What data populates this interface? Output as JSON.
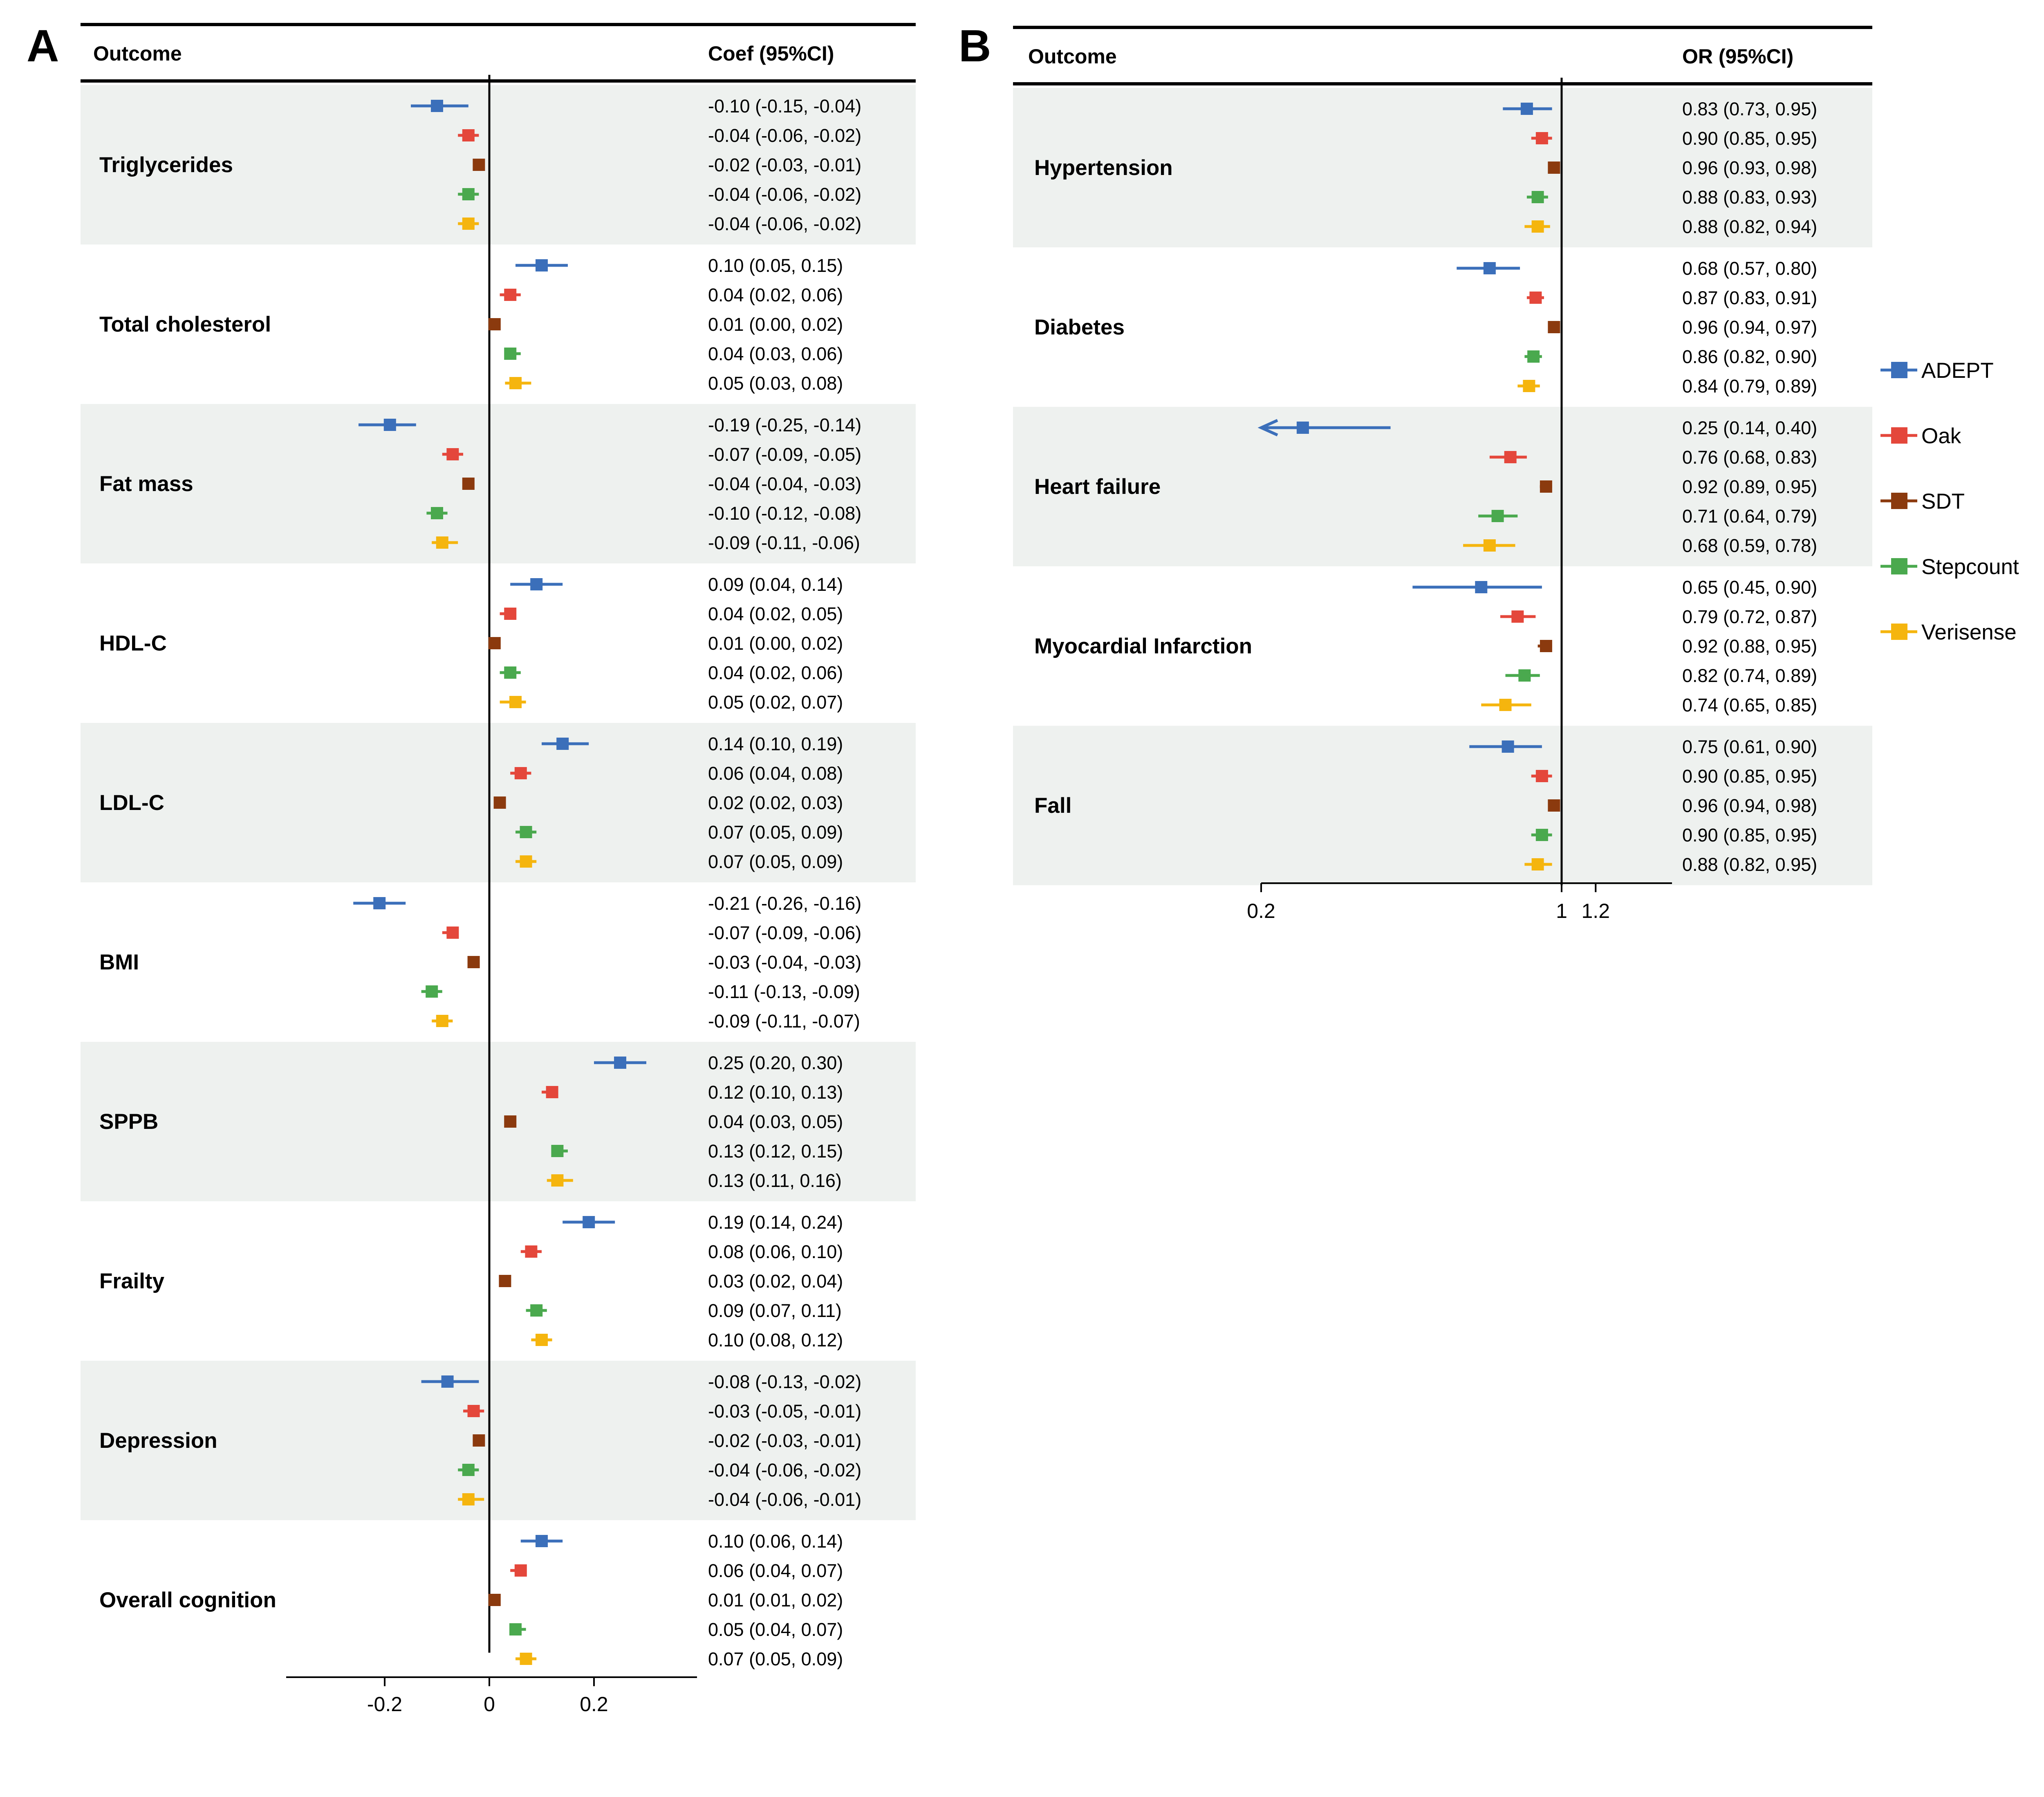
{
  "series_colors": {
    "ADEPT": "#3b6fba",
    "Oak": "#e4473b",
    "SDT": "#8b3a0e",
    "Stepcount": "#4aa94e",
    "Verisense": "#f5b50e"
  },
  "band_color": "#eef1ef",
  "legend": [
    "ADEPT",
    "Oak",
    "SDT",
    "Stepcount",
    "Verisense"
  ],
  "chart_data": [
    {
      "panel": "A",
      "type": "forest",
      "header_left": "Outcome",
      "header_right": "Coef (95%CI)",
      "scale": "linear",
      "xlim": [
        -0.39,
        0.39
      ],
      "xticks": [
        -0.2,
        0,
        0.2
      ],
      "xtick_labels": [
        "-0.2",
        "0",
        "0.2"
      ],
      "reference_line": 0,
      "series": [
        "ADEPT",
        "Oak",
        "SDT",
        "Stepcount",
        "Verisense"
      ],
      "outcomes": [
        {
          "name": "Triglycerides",
          "est": [
            -0.1,
            -0.04,
            -0.02,
            -0.04,
            -0.04
          ],
          "lo": [
            -0.15,
            -0.06,
            -0.03,
            -0.06,
            -0.06
          ],
          "hi": [
            -0.04,
            -0.02,
            -0.01,
            -0.02,
            -0.02
          ],
          "labels": [
            "-0.10 (-0.15, -0.04)",
            "-0.04 (-0.06, -0.02)",
            "-0.02 (-0.03, -0.01)",
            "-0.04 (-0.06, -0.02)",
            "-0.04 (-0.06, -0.02)"
          ]
        },
        {
          "name": "Total cholesterol",
          "est": [
            0.1,
            0.04,
            0.01,
            0.04,
            0.05
          ],
          "lo": [
            0.05,
            0.02,
            0.0,
            0.03,
            0.03
          ],
          "hi": [
            0.15,
            0.06,
            0.02,
            0.06,
            0.08
          ],
          "labels": [
            "0.10 (0.05, 0.15)",
            "0.04 (0.02, 0.06)",
            "0.01 (0.00, 0.02)",
            "0.04 (0.03, 0.06)",
            "0.05 (0.03, 0.08)"
          ]
        },
        {
          "name": "Fat mass",
          "est": [
            -0.19,
            -0.07,
            -0.04,
            -0.1,
            -0.09
          ],
          "lo": [
            -0.25,
            -0.09,
            -0.04,
            -0.12,
            -0.11
          ],
          "hi": [
            -0.14,
            -0.05,
            -0.03,
            -0.08,
            -0.06
          ],
          "labels": [
            "-0.19 (-0.25, -0.14)",
            "-0.07 (-0.09, -0.05)",
            "-0.04 (-0.04, -0.03)",
            "-0.10 (-0.12, -0.08)",
            "-0.09 (-0.11, -0.06)"
          ]
        },
        {
          "name": "HDL-C",
          "est": [
            0.09,
            0.04,
            0.01,
            0.04,
            0.05
          ],
          "lo": [
            0.04,
            0.02,
            0.0,
            0.02,
            0.02
          ],
          "hi": [
            0.14,
            0.05,
            0.02,
            0.06,
            0.07
          ],
          "labels": [
            "0.09 (0.04, 0.14)",
            "0.04 (0.02, 0.05)",
            "0.01 (0.00, 0.02)",
            "0.04 (0.02, 0.06)",
            "0.05 (0.02, 0.07)"
          ]
        },
        {
          "name": "LDL-C",
          "est": [
            0.14,
            0.06,
            0.02,
            0.07,
            0.07
          ],
          "lo": [
            0.1,
            0.04,
            0.02,
            0.05,
            0.05
          ],
          "hi": [
            0.19,
            0.08,
            0.03,
            0.09,
            0.09
          ],
          "labels": [
            "0.14 (0.10, 0.19)",
            "0.06 (0.04, 0.08)",
            "0.02 (0.02, 0.03)",
            "0.07 (0.05, 0.09)",
            "0.07 (0.05, 0.09)"
          ]
        },
        {
          "name": "BMI",
          "est": [
            -0.21,
            -0.07,
            -0.03,
            -0.11,
            -0.09
          ],
          "lo": [
            -0.26,
            -0.09,
            -0.04,
            -0.13,
            -0.11
          ],
          "hi": [
            -0.16,
            -0.06,
            -0.03,
            -0.09,
            -0.07
          ],
          "labels": [
            "-0.21 (-0.26, -0.16)",
            "-0.07 (-0.09, -0.06)",
            "-0.03 (-0.04, -0.03)",
            "-0.11 (-0.13, -0.09)",
            "-0.09 (-0.11, -0.07)"
          ]
        },
        {
          "name": "SPPB",
          "est": [
            0.25,
            0.12,
            0.04,
            0.13,
            0.13
          ],
          "lo": [
            0.2,
            0.1,
            0.03,
            0.12,
            0.11
          ],
          "hi": [
            0.3,
            0.13,
            0.05,
            0.15,
            0.16
          ],
          "labels": [
            "0.25 (0.20, 0.30)",
            "0.12 (0.10, 0.13)",
            "0.04 (0.03, 0.05)",
            "0.13 (0.12, 0.15)",
            "0.13 (0.11, 0.16)"
          ]
        },
        {
          "name": "Frailty",
          "est": [
            0.19,
            0.08,
            0.03,
            0.09,
            0.1
          ],
          "lo": [
            0.14,
            0.06,
            0.02,
            0.07,
            0.08
          ],
          "hi": [
            0.24,
            0.1,
            0.04,
            0.11,
            0.12
          ],
          "labels": [
            "0.19 (0.14, 0.24)",
            "0.08 (0.06, 0.10)",
            "0.03 (0.02, 0.04)",
            "0.09 (0.07, 0.11)",
            "0.10 (0.08, 0.12)"
          ]
        },
        {
          "name": "Depression",
          "est": [
            -0.08,
            -0.03,
            -0.02,
            -0.04,
            -0.04
          ],
          "lo": [
            -0.13,
            -0.05,
            -0.03,
            -0.06,
            -0.06
          ],
          "hi": [
            -0.02,
            -0.01,
            -0.01,
            -0.02,
            -0.01
          ],
          "labels": [
            "-0.08 (-0.13, -0.02)",
            "-0.03 (-0.05, -0.01)",
            "-0.02 (-0.03, -0.01)",
            "-0.04 (-0.06, -0.02)",
            "-0.04 (-0.06, -0.01)"
          ]
        },
        {
          "name": "Overall cognition",
          "est": [
            0.1,
            0.06,
            0.01,
            0.05,
            0.07
          ],
          "lo": [
            0.06,
            0.04,
            0.01,
            0.04,
            0.05
          ],
          "hi": [
            0.14,
            0.07,
            0.02,
            0.07,
            0.09
          ],
          "labels": [
            "0.10 (0.06, 0.14)",
            "0.06 (0.04, 0.07)",
            "0.01 (0.01, 0.02)",
            "0.05 (0.04, 0.07)",
            "0.07 (0.05, 0.09)"
          ]
        }
      ]
    },
    {
      "panel": "B",
      "type": "forest",
      "header_left": "Outcome",
      "header_right": "OR (95%CI)",
      "scale": "log",
      "xlim": [
        0.2,
        1.3
      ],
      "xticks": [
        0.2,
        1,
        1.2
      ],
      "xtick_labels": [
        "0.2",
        "1",
        "1.2"
      ],
      "reference_line": 1,
      "series": [
        "ADEPT",
        "Oak",
        "SDT",
        "Stepcount",
        "Verisense"
      ],
      "outcomes": [
        {
          "name": "Hypertension",
          "est": [
            0.83,
            0.9,
            0.96,
            0.88,
            0.88
          ],
          "lo": [
            0.73,
            0.85,
            0.93,
            0.83,
            0.82
          ],
          "hi": [
            0.95,
            0.95,
            0.98,
            0.93,
            0.94
          ],
          "labels": [
            "0.83 (0.73, 0.95)",
            "0.90 (0.85, 0.95)",
            "0.96 (0.93, 0.98)",
            "0.88 (0.83, 0.93)",
            "0.88 (0.82, 0.94)"
          ]
        },
        {
          "name": "Diabetes",
          "est": [
            0.68,
            0.87,
            0.96,
            0.86,
            0.84
          ],
          "lo": [
            0.57,
            0.83,
            0.94,
            0.82,
            0.79
          ],
          "hi": [
            0.8,
            0.91,
            0.97,
            0.9,
            0.89
          ],
          "labels": [
            "0.68 (0.57, 0.80)",
            "0.87 (0.83, 0.91)",
            "0.96 (0.94, 0.97)",
            "0.86 (0.82, 0.90)",
            "0.84 (0.79, 0.89)"
          ]
        },
        {
          "name": "Heart failure",
          "est": [
            0.25,
            0.76,
            0.92,
            0.71,
            0.68
          ],
          "lo": [
            0.14,
            0.68,
            0.89,
            0.64,
            0.59
          ],
          "hi": [
            0.4,
            0.83,
            0.95,
            0.79,
            0.78
          ],
          "labels": [
            "0.25 (0.14, 0.40)",
            "0.76 (0.68, 0.83)",
            "0.92 (0.89, 0.95)",
            "0.71 (0.64, 0.79)",
            "0.68 (0.59, 0.78)"
          ]
        },
        {
          "name": "Myocardial Infarction",
          "est": [
            0.65,
            0.79,
            0.92,
            0.82,
            0.74
          ],
          "lo": [
            0.45,
            0.72,
            0.88,
            0.74,
            0.65
          ],
          "hi": [
            0.9,
            0.87,
            0.95,
            0.89,
            0.85
          ],
          "labels": [
            "0.65 (0.45, 0.90)",
            "0.79 (0.72, 0.87)",
            "0.92 (0.88, 0.95)",
            "0.82 (0.74, 0.89)",
            "0.74 (0.65, 0.85)"
          ]
        },
        {
          "name": "Fall",
          "est": [
            0.75,
            0.9,
            0.96,
            0.9,
            0.88
          ],
          "lo": [
            0.61,
            0.85,
            0.94,
            0.85,
            0.82
          ],
          "hi": [
            0.9,
            0.95,
            0.98,
            0.95,
            0.95
          ],
          "labels": [
            "0.75 (0.61, 0.90)",
            "0.90 (0.85, 0.95)",
            "0.96 (0.94, 0.98)",
            "0.90 (0.85, 0.95)",
            "0.88 (0.82, 0.95)"
          ]
        }
      ]
    }
  ]
}
